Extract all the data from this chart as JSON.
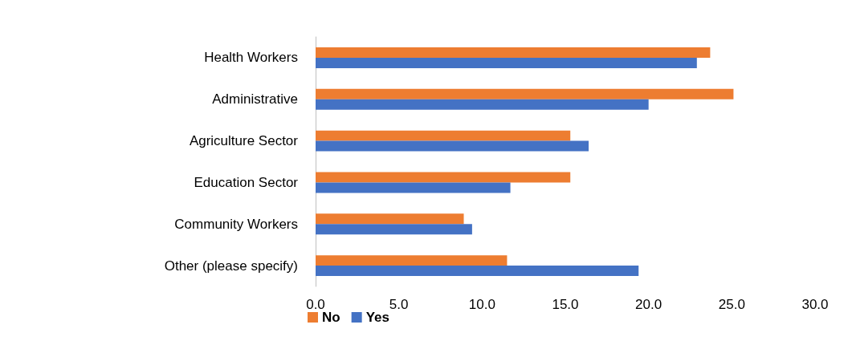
{
  "chart_data": {
    "type": "bar",
    "orientation": "horizontal",
    "categories": [
      "Health Workers",
      "Administrative",
      "Agriculture Sector",
      "Education Sector",
      "Community Workers",
      "Other (please specify)"
    ],
    "series": [
      {
        "name": "No",
        "color": "#ed7d31",
        "values": [
          23.7,
          25.1,
          15.3,
          15.3,
          8.9,
          11.5
        ]
      },
      {
        "name": "Yes",
        "color": "#4472c4",
        "values": [
          22.9,
          20.0,
          16.4,
          11.7,
          9.4,
          19.4
        ]
      }
    ],
    "xlim": [
      0,
      30
    ],
    "xticks": [
      {
        "value": 0,
        "label": "0.0"
      },
      {
        "value": 5,
        "label": "5.0"
      },
      {
        "value": 10,
        "label": "10.0"
      },
      {
        "value": 15,
        "label": "15.0"
      },
      {
        "value": 20,
        "label": "20.0"
      },
      {
        "value": 25,
        "label": "25.0"
      },
      {
        "value": 30,
        "label": "30.0"
      }
    ],
    "grid": false,
    "legend": "bottom"
  }
}
